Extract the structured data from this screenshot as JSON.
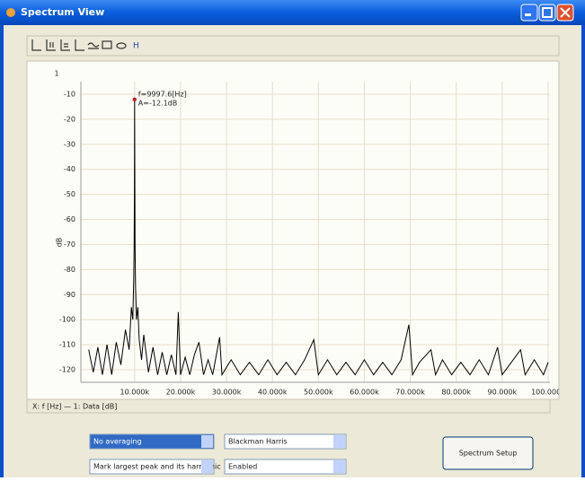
{
  "window": {
    "title": "Spectrum View"
  },
  "toolbar": {
    "label": "H"
  },
  "chart_data": {
    "type": "line",
    "y_axis_label": "1",
    "ylabel": "dB",
    "legend_text": "X: f [Hz] — 1: Data [dB]",
    "annotations": [
      "f=9997.6[Hz]",
      "A=-12.1dB"
    ],
    "marker_index": 15,
    "xlim": [
      -1700,
      100400
    ],
    "ylim": [
      -125,
      -5
    ],
    "grid": true,
    "xticks": [
      {
        "value": 10000,
        "label": "10.000k"
      },
      {
        "value": 20000,
        "label": "20.000k"
      },
      {
        "value": 30000,
        "label": "30.000k"
      },
      {
        "value": 40000,
        "label": "40.000k"
      },
      {
        "value": 50000,
        "label": "50.000k"
      },
      {
        "value": 60000,
        "label": "60.000k"
      },
      {
        "value": 70000,
        "label": "70.000k"
      },
      {
        "value": 80000,
        "label": "80.000k"
      },
      {
        "value": 90000,
        "label": "90.000k"
      },
      {
        "value": 100000,
        "label": "100.000k"
      }
    ],
    "yticks": [
      -10,
      -20,
      -30,
      -40,
      -50,
      -60,
      -70,
      -80,
      -90,
      -100,
      -110,
      -120
    ],
    "x": [
      0,
      1000,
      2000,
      3000,
      4000,
      5000,
      6000,
      7000,
      8000,
      8800,
      9300,
      9600,
      9800,
      9900,
      9950,
      9997.6,
      10050,
      10100,
      10200,
      10400,
      10700,
      11000,
      11500,
      12000,
      13000,
      14000,
      15000,
      16000,
      17000,
      18000,
      19000,
      19500,
      20000,
      21000,
      22000,
      23000,
      24000,
      25000,
      26000,
      27000,
      28500,
      29000,
      31000,
      33000,
      35000,
      37000,
      39000,
      41000,
      43000,
      45000,
      47000,
      49000,
      50000,
      52000,
      54000,
      56000,
      58000,
      60000,
      62000,
      64000,
      66000,
      68000,
      69700,
      70500,
      72000,
      74500,
      75500,
      77000,
      79000,
      81000,
      83000,
      85000,
      87000,
      89000,
      90000,
      92000,
      94000,
      95000,
      97000,
      99000,
      100000
    ],
    "series": [
      {
        "name": "Data",
        "color": "#000000",
        "values": [
          -112,
          -121,
          -111,
          -122,
          -110,
          -122,
          -109,
          -118,
          -104,
          -112,
          -95,
          -100,
          -84,
          -70,
          -48,
          -12.1,
          -48,
          -70,
          -86,
          -100,
          -95,
          -108,
          -116,
          -106,
          -121,
          -111,
          -122,
          -113,
          -122,
          -114,
          -122,
          -97,
          -122,
          -115,
          -122,
          -114,
          -109,
          -122,
          -116,
          -122,
          -107,
          -122,
          -116,
          -122,
          -117,
          -122,
          -116,
          -122,
          -117,
          -122,
          -116,
          -108,
          -122,
          -116,
          -122,
          -117,
          -122,
          -116,
          -122,
          -117,
          -122,
          -116,
          -102,
          -122,
          -117,
          -112,
          -122,
          -116,
          -122,
          -117,
          -122,
          -116,
          -122,
          -111,
          -122,
          -117,
          -112,
          -122,
          -116,
          -122,
          -117
        ]
      }
    ]
  },
  "controls": {
    "averaging": "No averaging",
    "window_function": "Blackman Harris",
    "peak_mode": "Mark largest peak and its harmonic",
    "peak_state": "Enabled",
    "setup_button": "Spectrum Setup"
  }
}
